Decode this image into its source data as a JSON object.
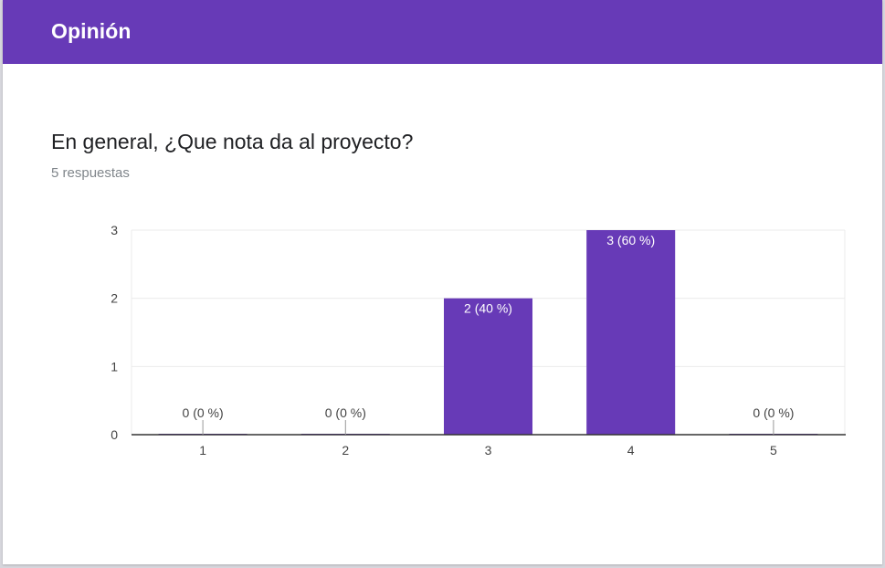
{
  "section": {
    "title": "Opinión"
  },
  "question": {
    "title": "En general, ¿Que nota da al proyecto?",
    "responses": "5 respuestas"
  },
  "colors": {
    "accent": "#673ab7",
    "bar": "#673ab7",
    "header_text": "#ffffff"
  },
  "chart_data": {
    "type": "bar",
    "categories": [
      "1",
      "2",
      "3",
      "4",
      "5"
    ],
    "values": [
      0,
      0,
      2,
      3,
      0
    ],
    "data_labels": [
      "0 (0 %)",
      "0 (0 %)",
      "2 (40 %)",
      "3 (60 %)",
      "0 (0 %)"
    ],
    "y_ticks": [
      "0",
      "1",
      "2",
      "3"
    ],
    "ylim": [
      0,
      3
    ],
    "grid": true,
    "legend": "none"
  }
}
